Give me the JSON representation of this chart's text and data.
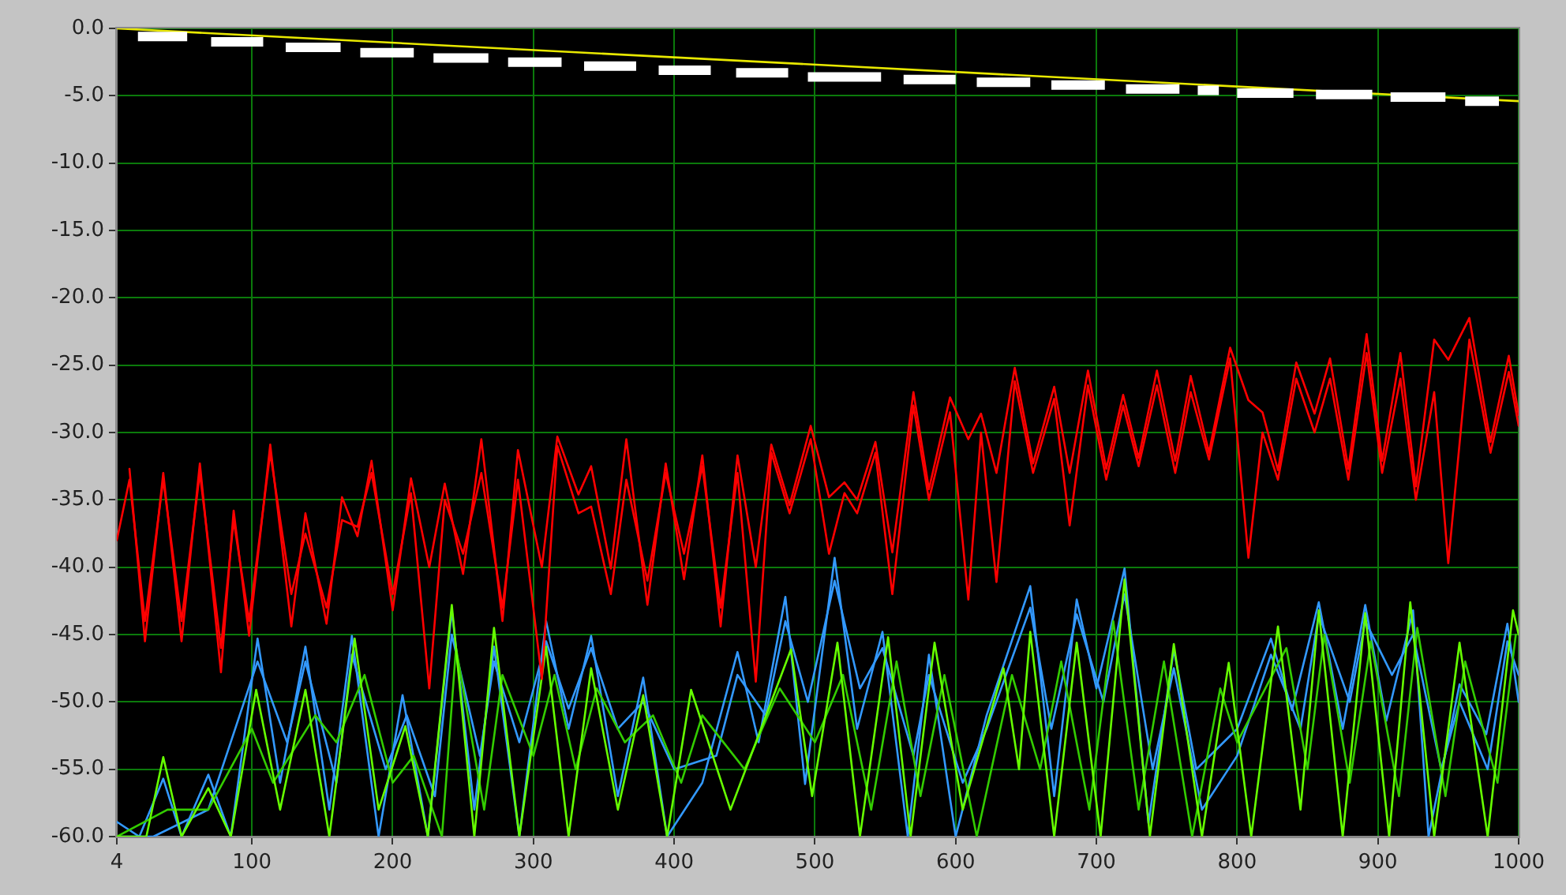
{
  "chart_data": {
    "type": "line",
    "xlim": [
      4,
      1000
    ],
    "xticks": [
      4,
      100,
      200,
      300,
      400,
      500,
      600,
      700,
      800,
      900,
      1000
    ],
    "ylim": [
      -60,
      0
    ],
    "yticks": [
      {
        "value": 0,
        "label": "0.0"
      },
      {
        "value": -5,
        "label": "-5.0"
      },
      {
        "value": -10,
        "label": "-10.0"
      },
      {
        "value": -15,
        "label": "-15.0"
      },
      {
        "value": -20,
        "label": "-20.0"
      },
      {
        "value": -25,
        "label": "-25.0"
      },
      {
        "value": -30,
        "label": "-30.0"
      },
      {
        "value": -35,
        "label": "-35.0"
      },
      {
        "value": -40,
        "label": "-40.0"
      },
      {
        "value": -45,
        "label": "-45.0"
      },
      {
        "value": -50,
        "label": "-50.0"
      },
      {
        "value": -55,
        "label": "-55.0"
      },
      {
        "value": -60,
        "label": "-60.0"
      }
    ],
    "grid": true,
    "legend": false,
    "marker": "none",
    "line_style": "solid",
    "series": [
      {
        "color": "#ffffff",
        "x": [
          19,
          54,
          62,
          71,
          108,
          116,
          124,
          163,
          170,
          177,
          215,
          222,
          229,
          268,
          275,
          282,
          320,
          328,
          336,
          373,
          381,
          389,
          426,
          435,
          444,
          481,
          488,
          495,
          547,
          555,
          563,
          600,
          608,
          615,
          653,
          660,
          668,
          706,
          714,
          721,
          759,
          765,
          772,
          787,
          793,
          800,
          840,
          848,
          856,
          896,
          902,
          909,
          948,
          955,
          962,
          986
        ],
        "values": [
          -0.6,
          -0.6,
          null,
          -1.0,
          -1.0,
          null,
          -1.4,
          -1.4,
          null,
          -1.8,
          -1.8,
          null,
          -2.2,
          -2.2,
          null,
          -2.5,
          -2.5,
          null,
          -2.8,
          -2.8,
          null,
          -3.1,
          -3.1,
          null,
          -3.3,
          -3.3,
          null,
          -3.6,
          -3.6,
          null,
          -3.8,
          -3.8,
          null,
          -4.0,
          -4.0,
          null,
          -4.2,
          -4.2,
          null,
          -4.5,
          -4.5,
          null,
          -4.6,
          -4.6,
          null,
          -4.8,
          -4.8,
          null,
          -4.9,
          -4.9,
          null,
          -5.1,
          -5.1,
          null,
          -5.4,
          -5.4
        ]
      },
      {
        "color": "#e8e800",
        "x": [
          4,
          1000
        ],
        "values": [
          0,
          -5.4
        ]
      },
      {
        "color": "#ff0000",
        "x": [
          13,
          24,
          37,
          50,
          63,
          78,
          87,
          98,
          113,
          128,
          138,
          153,
          164,
          175,
          185,
          200,
          213,
          226,
          237,
          250,
          263,
          278,
          289,
          306,
          317,
          332,
          341,
          355,
          366,
          381,
          394,
          407,
          420,
          433,
          445,
          458,
          469,
          482,
          497,
          510,
          521,
          530,
          543,
          555,
          570,
          581,
          596,
          609,
          618,
          629,
          642,
          655,
          670,
          681,
          694,
          707,
          719,
          730,
          743,
          756,
          767,
          780,
          795,
          808,
          818,
          829,
          842,
          855,
          866,
          879,
          892,
          903,
          916,
          927,
          940,
          950,
          965,
          980,
          993,
          1000
        ],
        "values": [
          -32.7,
          -45.5,
          -33,
          -45.5,
          -32.3,
          -47.8,
          -35.8,
          -45.1,
          -30.9,
          -44.4,
          -36,
          -44.2,
          -34.8,
          -37.7,
          -32.1,
          -43.2,
          -33.4,
          -40,
          -33.8,
          -40.5,
          -30.5,
          -44,
          -31.3,
          -40,
          -30.3,
          -34.6,
          -32.5,
          -40.1,
          -30.5,
          -42.8,
          -32.3,
          -40.9,
          -31.7,
          -44.4,
          -31.7,
          -40,
          -30.9,
          -35.4,
          -29.5,
          -34.8,
          -33.7,
          -35,
          -30.7,
          -38.9,
          -27,
          -34.2,
          -27.4,
          -30.5,
          -28.6,
          -33,
          -25.2,
          -32.3,
          -26.6,
          -33,
          -25.4,
          -32.7,
          -27.2,
          -31.9,
          -25.4,
          -32.1,
          -25.8,
          -31.5,
          -23.7,
          -27.6,
          -28.5,
          -32.8,
          -24.8,
          -28.6,
          -24.5,
          -32.7,
          -22.7,
          -32.1,
          -24.1,
          -34,
          -23.1,
          -24.6,
          -21.5,
          -30.7,
          -24.3,
          -28.7
        ]
      },
      {
        "color": "#ff0000",
        "x": [
          4,
          13,
          24,
          37,
          50,
          63,
          78,
          87,
          98,
          113,
          128,
          138,
          153,
          164,
          175,
          185,
          200,
          213,
          226,
          237,
          250,
          263,
          278,
          289,
          306,
          317,
          332,
          341,
          355,
          366,
          381,
          394,
          407,
          420,
          433,
          445,
          458,
          469,
          482,
          497,
          510,
          521,
          530,
          543,
          555,
          570,
          581,
          596,
          609,
          618,
          629,
          642,
          655,
          670,
          681,
          694,
          707,
          719,
          730,
          743,
          756,
          767,
          780,
          795,
          808,
          818,
          829,
          842,
          855,
          866,
          879,
          892,
          903,
          916,
          927,
          940,
          950,
          965,
          980,
          993,
          1000
        ],
        "values": [
          -38,
          -33.5,
          -44,
          -33.5,
          -44,
          -33,
          -46,
          -36.5,
          -44,
          -31.5,
          -42,
          -37.5,
          -43,
          -36.5,
          -37,
          -33,
          -42,
          -34.5,
          -49,
          -35,
          -39,
          -33,
          -43,
          -33.5,
          -48.3,
          -31,
          -36,
          -35.5,
          -42,
          -33.5,
          -41,
          -33,
          -39,
          -32.5,
          -43,
          -33,
          -48.5,
          -31.5,
          -36,
          -30.5,
          -39,
          -34.5,
          -36,
          -31.5,
          -42,
          -28,
          -35,
          -28.5,
          -42.4,
          -30,
          -41.1,
          -26.2,
          -33,
          -27.5,
          -36.9,
          -26.5,
          -33.5,
          -28,
          -32.5,
          -26.5,
          -33,
          -27,
          -32,
          -24.5,
          -39.3,
          -30,
          -33.5,
          -26,
          -30,
          -26,
          -33.5,
          -24.1,
          -33,
          -26,
          -35,
          -27,
          -39.7,
          -23.1,
          -31.5,
          -25.5,
          -29.5
        ]
      },
      {
        "color": "#66ff00",
        "x": [
          4,
          25,
          37,
          50,
          69,
          85,
          103,
          120,
          138,
          155,
          173,
          190,
          209,
          225,
          242,
          258,
          272,
          290,
          309,
          325,
          341,
          360,
          378,
          395,
          412,
          440,
          483,
          498,
          516,
          532,
          552,
          568,
          585,
          605,
          634,
          645,
          653,
          670,
          686,
          703,
          720,
          738,
          755,
          775,
          794,
          810,
          829,
          845,
          858,
          875,
          891,
          908,
          923,
          940,
          958,
          978,
          996,
          1000
        ],
        "values": [
          -60,
          -60,
          -54.1,
          -60,
          -56.4,
          -60,
          -49.1,
          -58,
          -49.1,
          -60,
          -45.3,
          -58,
          -51.8,
          -60,
          -42.8,
          -60,
          -44.5,
          -60,
          -45.9,
          -60,
          -47.5,
          -58,
          -49.5,
          -60,
          -49.1,
          -58,
          -46.1,
          -57,
          -45.6,
          -60,
          -45.2,
          -60,
          -45.6,
          -58,
          -47.5,
          -55,
          -44.8,
          -60,
          -45.6,
          -60,
          -40.9,
          -60,
          -45.7,
          -60,
          -47.1,
          -60,
          -44.4,
          -58,
          -43.2,
          -60,
          -43.4,
          -60,
          -42.6,
          -60,
          -45.6,
          -60,
          -43.2,
          -45
        ]
      },
      {
        "color": "#33cc00",
        "x": [
          4,
          40,
          69,
          100,
          115,
          145,
          160,
          180,
          200,
          215,
          235,
          245,
          265,
          278,
          300,
          315,
          330,
          345,
          365,
          385,
          405,
          420,
          450,
          475,
          500,
          520,
          540,
          558,
          575,
          592,
          615,
          640,
          660,
          675,
          695,
          712,
          730,
          748,
          768,
          788,
          800,
          835,
          850,
          862,
          880,
          895,
          915,
          928,
          948,
          962,
          985,
          998
        ],
        "values": [
          -60,
          -58,
          -58,
          -52,
          -56,
          -51,
          -53,
          -48,
          -56,
          -54,
          -60,
          -46,
          -58,
          -48,
          -54,
          -48,
          -55,
          -49,
          -53,
          -51,
          -56,
          -51,
          -55,
          -49,
          -53,
          -48,
          -58,
          -47,
          -57,
          -48,
          -60,
          -48,
          -55,
          -47,
          -58,
          -44,
          -58,
          -47,
          -60,
          -49,
          -53,
          -46,
          -55,
          -45,
          -56,
          -45.5,
          -57,
          -44.5,
          -57,
          -47,
          -56,
          -45
        ]
      },
      {
        "color": "#3399ff",
        "x": [
          4,
          20,
          37,
          50,
          69,
          85,
          104,
          120,
          138,
          155,
          171,
          190,
          207,
          225,
          242,
          258,
          272,
          290,
          309,
          325,
          341,
          360,
          378,
          395,
          420,
          445,
          460,
          479,
          493,
          514,
          530,
          548,
          566,
          581,
          600,
          622,
          653,
          670,
          686,
          700,
          720,
          737,
          755,
          771,
          800,
          824,
          839,
          858,
          875,
          891,
          906,
          925,
          936,
          958,
          977,
          992,
          1000
        ],
        "values": [
          -58.9,
          -60,
          -55.7,
          -60,
          -55.4,
          -60,
          -45.3,
          -56,
          -45.9,
          -58,
          -45.1,
          -60,
          -49.5,
          -60,
          -43.2,
          -58,
          -45.9,
          -60,
          -44,
          -52,
          -45.1,
          -57,
          -48.2,
          -60,
          -56,
          -46.3,
          -53,
          -42.2,
          -56.1,
          -39.3,
          -52,
          -44.8,
          -60,
          -46.5,
          -60,
          -51,
          -41.4,
          -57,
          -42.4,
          -49,
          -40.1,
          -59,
          -46.1,
          -55,
          -52,
          -45.3,
          -50.6,
          -42.6,
          -52,
          -42.8,
          -51.4,
          -43.2,
          -60,
          -48.7,
          -52.4,
          -44.2,
          -50
        ]
      },
      {
        "color": "#3399ff",
        "x": [
          4,
          30,
          69,
          104,
          125,
          138,
          160,
          171,
          195,
          210,
          230,
          242,
          262,
          272,
          290,
          309,
          325,
          341,
          360,
          378,
          400,
          430,
          445,
          465,
          479,
          495,
          514,
          532,
          548,
          570,
          581,
          605,
          622,
          653,
          668,
          686,
          705,
          720,
          740,
          755,
          775,
          800,
          824,
          845,
          858,
          880,
          891,
          910,
          925,
          945,
          958,
          978,
          992,
          1000
        ],
        "values": [
          -60,
          -60,
          -58,
          -47,
          -53,
          -47,
          -56,
          -46.5,
          -55,
          -51,
          -57,
          -45,
          -54,
          -47,
          -53,
          -45.5,
          -50.5,
          -46,
          -52,
          -50,
          -55,
          -54,
          -48,
          -51,
          -44,
          -50,
          -41,
          -49,
          -46,
          -54,
          -48,
          -56,
          -52,
          -43,
          -52,
          -43.5,
          -50,
          -42,
          -55,
          -47.5,
          -58,
          -54,
          -46.5,
          -52,
          -43.5,
          -50,
          -44,
          -48,
          -45,
          -55,
          -50,
          -55,
          -45.5,
          -48
        ]
      }
    ]
  }
}
